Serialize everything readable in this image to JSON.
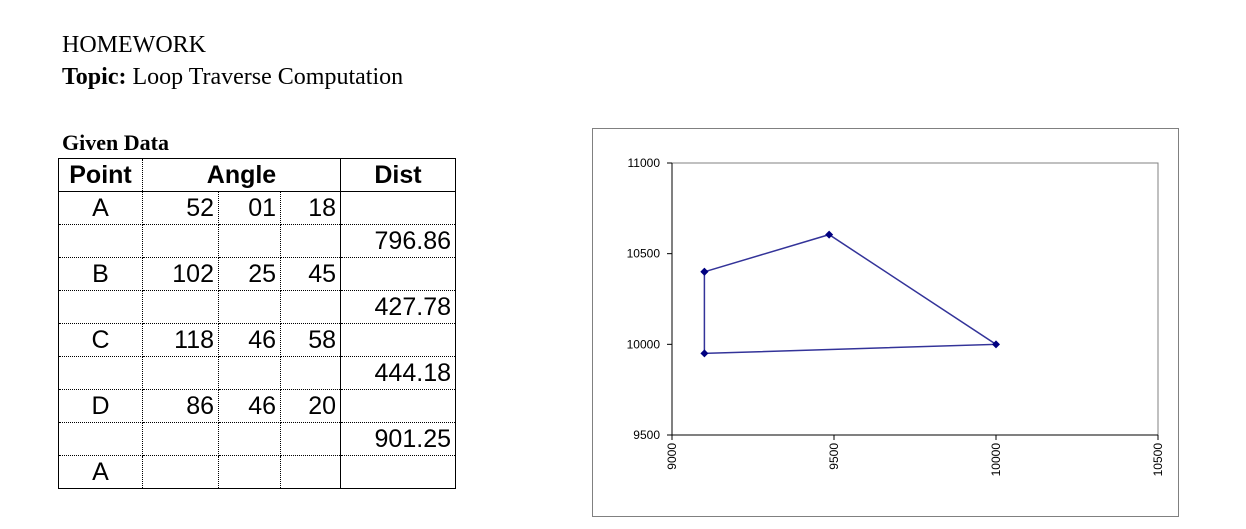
{
  "header": {
    "title": "HOMEWORK",
    "topic_label": "Topic:",
    "topic_value": "Loop Traverse Computation"
  },
  "given_data": {
    "title": "Given Data",
    "columns": [
      "Point",
      "Angle",
      "Dist"
    ],
    "rows": [
      {
        "point": "A",
        "deg": "52",
        "min": "01",
        "sec": "18",
        "dist": ""
      },
      {
        "point": "",
        "deg": "",
        "min": "",
        "sec": "",
        "dist": "796.86"
      },
      {
        "point": "B",
        "deg": "102",
        "min": "25",
        "sec": "45",
        "dist": ""
      },
      {
        "point": "",
        "deg": "",
        "min": "",
        "sec": "",
        "dist": "427.78"
      },
      {
        "point": "C",
        "deg": "118",
        "min": "46",
        "sec": "58",
        "dist": ""
      },
      {
        "point": "",
        "deg": "",
        "min": "",
        "sec": "",
        "dist": "444.18"
      },
      {
        "point": "D",
        "deg": "86",
        "min": "46",
        "sec": "20",
        "dist": ""
      },
      {
        "point": "",
        "deg": "",
        "min": "",
        "sec": "",
        "dist": "901.25"
      },
      {
        "point": "A",
        "deg": "",
        "min": "",
        "sec": "",
        "dist": ""
      }
    ]
  },
  "chart_data": {
    "type": "scatter",
    "title": "",
    "xlabel": "",
    "ylabel": "",
    "xlim": [
      9000,
      10500
    ],
    "ylim": [
      9500,
      11000
    ],
    "x_ticks": [
      "9000",
      "9500",
      "10000",
      "10500"
    ],
    "y_ticks": [
      "11000",
      "10500",
      "10000",
      "9500"
    ],
    "series": [
      {
        "points": [
          {
            "x": 9100,
            "y": 10400
          },
          {
            "x": 9485,
            "y": 10605
          },
          {
            "x": 10000,
            "y": 10000
          },
          {
            "x": 9100,
            "y": 9950
          },
          {
            "x": 9100,
            "y": 10400
          }
        ],
        "color": "#333399",
        "marker_color": "#000080"
      }
    ],
    "grid": false,
    "legend": "none"
  }
}
